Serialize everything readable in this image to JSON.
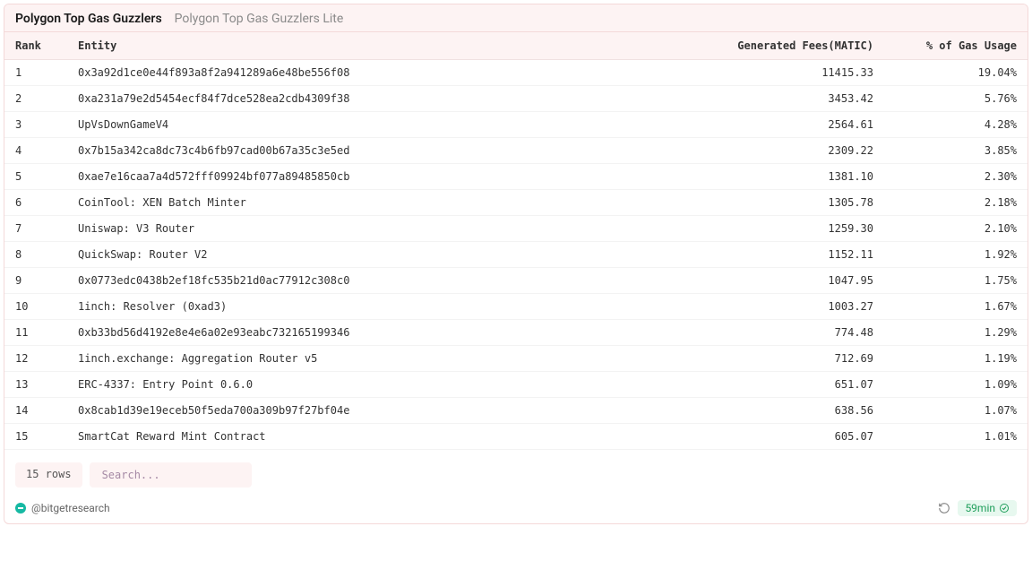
{
  "colors": {
    "card_border": "#f4d9d9",
    "header_bg": "#fdf3f3",
    "row_border": "#f3f3f3",
    "text": "#333333",
    "muted_text": "#8a8a8a",
    "badge_bg": "#e7f8ef",
    "badge_text": "#1e9e5a",
    "brand_dot": "#16b9a3"
  },
  "tabs": [
    {
      "label": "Polygon Top Gas Guzzlers",
      "active": true
    },
    {
      "label": "Polygon Top Gas Guzzlers Lite",
      "active": false
    }
  ],
  "table": {
    "columns": [
      {
        "key": "rank",
        "label": "Rank",
        "align": "left"
      },
      {
        "key": "entity",
        "label": "Entity",
        "align": "left"
      },
      {
        "key": "fees",
        "label": "Generated Fees(MATIC)",
        "align": "right"
      },
      {
        "key": "pct",
        "label": "% of Gas Usage",
        "align": "right"
      }
    ],
    "rows": [
      {
        "rank": "1",
        "entity": "0x3a92d1ce0e44f893a8f2a941289a6e48be556f08",
        "fees": "11415.33",
        "pct": "19.04%"
      },
      {
        "rank": "2",
        "entity": "0xa231a79e2d5454ecf84f7dce528ea2cdb4309f38",
        "fees": "3453.42",
        "pct": "5.76%"
      },
      {
        "rank": "3",
        "entity": "UpVsDownGameV4",
        "fees": "2564.61",
        "pct": "4.28%"
      },
      {
        "rank": "4",
        "entity": "0x7b15a342ca8dc73c4b6fb97cad00b67a35c3e5ed",
        "fees": "2309.22",
        "pct": "3.85%"
      },
      {
        "rank": "5",
        "entity": "0xae7e16caa7a4d572fff09924bf077a89485850cb",
        "fees": "1381.10",
        "pct": "2.30%"
      },
      {
        "rank": "6",
        "entity": "CoinTool: XEN Batch Minter",
        "fees": "1305.78",
        "pct": "2.18%"
      },
      {
        "rank": "7",
        "entity": "Uniswap: V3 Router",
        "fees": "1259.30",
        "pct": "2.10%"
      },
      {
        "rank": "8",
        "entity": "QuickSwap: Router V2",
        "fees": "1152.11",
        "pct": "1.92%"
      },
      {
        "rank": "9",
        "entity": "0x0773edc0438b2ef18fc535b21d0ac77912c308c0",
        "fees": "1047.95",
        "pct": "1.75%"
      },
      {
        "rank": "10",
        "entity": "1inch: Resolver (0xad3)",
        "fees": "1003.27",
        "pct": "1.67%"
      },
      {
        "rank": "11",
        "entity": "0xb33bd56d4192e8e4e6a02e93eabc732165199346",
        "fees": "774.48",
        "pct": "1.29%"
      },
      {
        "rank": "12",
        "entity": "1inch.exchange: Aggregation Router v5",
        "fees": "712.69",
        "pct": "1.19%"
      },
      {
        "rank": "13",
        "entity": "ERC-4337: Entry Point 0.6.0",
        "fees": "651.07",
        "pct": "1.09%"
      },
      {
        "rank": "14",
        "entity": "0x8cab1d39e19eceb50f5eda700a309b97f27bf04e",
        "fees": "638.56",
        "pct": "1.07%"
      },
      {
        "rank": "15",
        "entity": "SmartCat Reward Mint Contract",
        "fees": "605.07",
        "pct": "1.01%"
      }
    ]
  },
  "toolbar": {
    "row_count_label": "15 rows",
    "search_placeholder": "Search..."
  },
  "footer": {
    "handle": "@bitgetresearch",
    "last_updated": "59min"
  }
}
